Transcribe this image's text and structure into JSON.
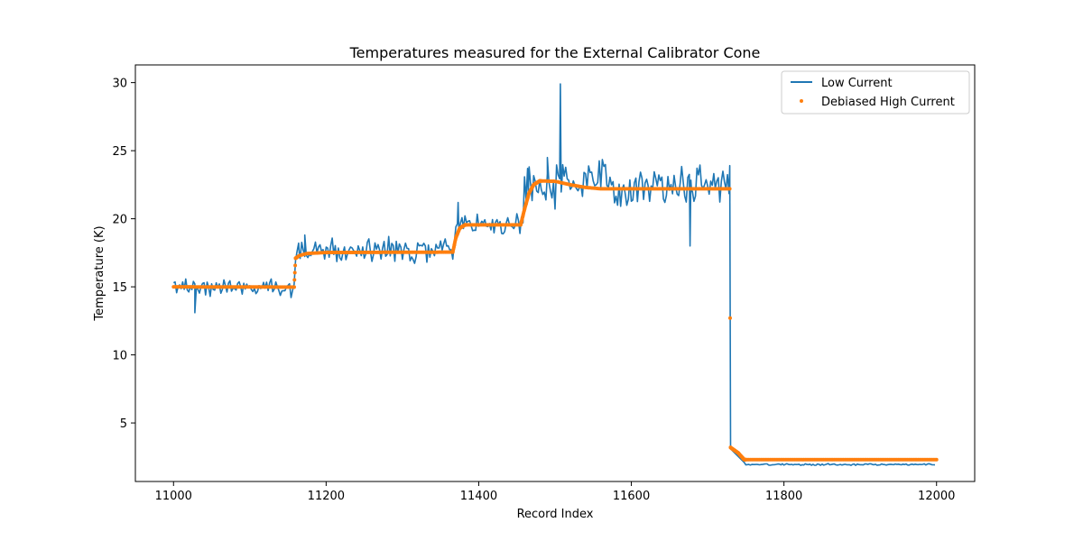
{
  "chart_data": {
    "type": "line",
    "title": "Temperatures measured for the External Calibrator Cone",
    "xlabel": "Record Index",
    "ylabel": "Temperature (K)",
    "xlim": [
      10950,
      12050
    ],
    "ylim": [
      0.7,
      31.3
    ],
    "x_ticks": [
      11000,
      11200,
      11400,
      11600,
      11800,
      12000
    ],
    "y_ticks": [
      5,
      10,
      15,
      20,
      25,
      30
    ],
    "legend_position": "top-right",
    "colors": {
      "low": "#1f77b4",
      "high": "#ff7f0e"
    },
    "series": [
      {
        "name": "Low Current",
        "style": "line",
        "segments": [
          {
            "x0": 11000,
            "x1": 11160,
            "base": 15.0,
            "noise": 0.28
          },
          {
            "x0": 11160,
            "x1": 11370,
            "base": 17.6,
            "noise": 0.45
          },
          {
            "x0": 11370,
            "x1": 11460,
            "base": 19.6,
            "noise": 0.45
          },
          {
            "x0": 11460,
            "x1": 11730,
            "base": 22.6,
            "noise": 0.75
          },
          {
            "x0": 11750,
            "x1": 12000,
            "base": 1.95,
            "noise": 0.03
          }
        ],
        "spikes": [
          {
            "x": 11028,
            "y": 13.1
          },
          {
            "x": 11165,
            "y": 17.2
          },
          {
            "x": 11172,
            "y": 18.8
          },
          {
            "x": 11373,
            "y": 21.2
          },
          {
            "x": 11465,
            "y": 22.0
          },
          {
            "x": 11490,
            "y": 24.5
          },
          {
            "x": 11507,
            "y": 29.9
          },
          {
            "x": 11509,
            "y": 22.6
          },
          {
            "x": 11677,
            "y": 18.0
          },
          {
            "x": 11679,
            "y": 22.0
          },
          {
            "x": 11729,
            "y": 23.9
          },
          {
            "x": 11730,
            "y": 3.1
          },
          {
            "x": 11748,
            "y": 2.1
          }
        ]
      },
      {
        "name": "Debiased High Current",
        "style": "points",
        "points": [
          [
            11000,
            15.0
          ],
          [
            11158,
            14.98
          ],
          [
            11160,
            17.1
          ],
          [
            11165,
            17.3
          ],
          [
            11175,
            17.45
          ],
          [
            11200,
            17.52
          ],
          [
            11366,
            17.55
          ],
          [
            11370,
            18.6
          ],
          [
            11375,
            19.3
          ],
          [
            11382,
            19.55
          ],
          [
            11455,
            19.55
          ],
          [
            11460,
            20.7
          ],
          [
            11466,
            21.9
          ],
          [
            11472,
            22.5
          ],
          [
            11480,
            22.78
          ],
          [
            11500,
            22.75
          ],
          [
            11520,
            22.5
          ],
          [
            11540,
            22.3
          ],
          [
            11560,
            22.2
          ],
          [
            11600,
            22.2
          ],
          [
            11729,
            22.2
          ],
          [
            11730,
            3.2
          ],
          [
            11740,
            2.8
          ],
          [
            11748,
            2.3
          ],
          [
            12000,
            2.3
          ]
        ]
      }
    ]
  }
}
